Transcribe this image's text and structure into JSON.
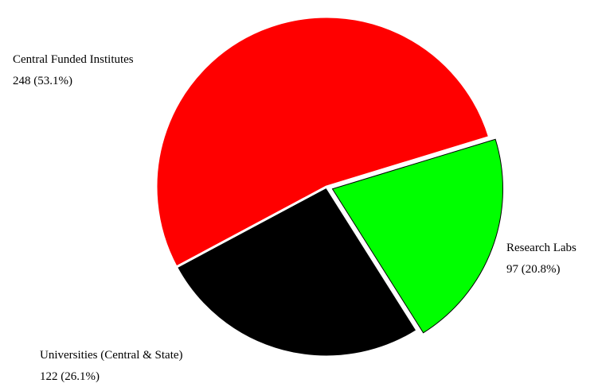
{
  "chart_data": {
    "type": "pie",
    "title": "",
    "legend": "none",
    "slices": [
      {
        "label": "Research Labs",
        "value": 97,
        "value_text": "97 (20.8%)",
        "percent": 20.8,
        "color": "#00ff00",
        "exploded": true
      },
      {
        "label": "Universities (Central & State)",
        "value": 122,
        "value_text": "122 (26.1%)",
        "percent": 26.1,
        "color": "#000000",
        "exploded": false
      },
      {
        "label": "Central Funded Institutes",
        "value": 248,
        "value_text": "248 (53.1%)",
        "percent": 53.1,
        "color": "#ff0000",
        "exploded": false
      }
    ]
  }
}
